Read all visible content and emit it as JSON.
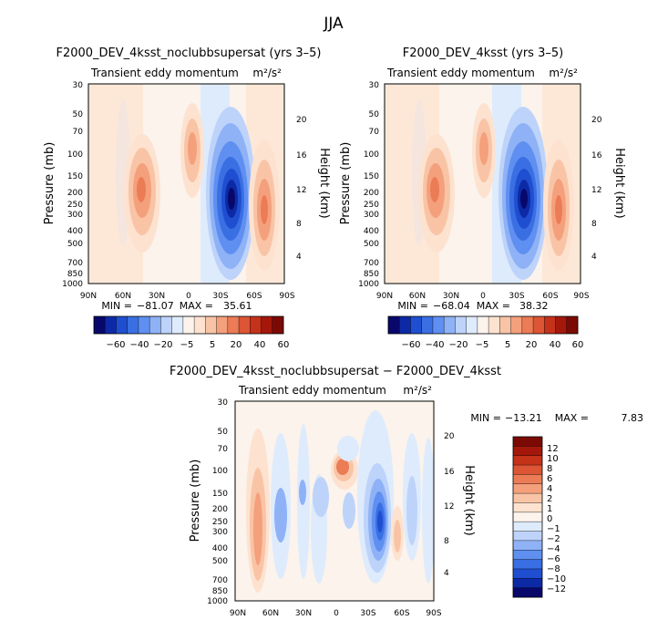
{
  "page": {
    "suptitle": "JJA"
  },
  "chart_data": [
    {
      "type": "heatmap",
      "title": "F2000_DEV_4ksst_noclubbsupersat (yrs 3–5)",
      "subtitle": "Transient eddy momentum",
      "units": "m²/s²",
      "xlabel": "",
      "ylabel": "Pressure (mb)",
      "y2label": "Height (km)",
      "x_ticks": [
        "90N",
        "60N",
        "30N",
        "0",
        "30S",
        "60S",
        "90S"
      ],
      "y_ticks": [
        "30",
        "50",
        "70",
        "100",
        "150",
        "200",
        "250",
        "300",
        "400",
        "500",
        "700",
        "850",
        "1000"
      ],
      "y2_ticks": [
        "20",
        "16",
        "12",
        "8",
        "4"
      ],
      "min_label": "MIN =",
      "min_value": "−81.07",
      "max_label": "MAX =",
      "max_value": "35.61",
      "colorbar_labels": [
        "−60",
        "−40",
        "−20",
        "−5",
        "5",
        "20",
        "40",
        "60"
      ]
    },
    {
      "type": "heatmap",
      "title": "F2000_DEV_4ksst (yrs 3–5)",
      "subtitle": "Transient eddy momentum",
      "units": "m²/s²",
      "xlabel": "",
      "ylabel": "Pressure (mb)",
      "y2label": "Height (km)",
      "x_ticks": [
        "90N",
        "60N",
        "30N",
        "0",
        "30S",
        "60S",
        "90S"
      ],
      "y_ticks": [
        "30",
        "50",
        "70",
        "100",
        "150",
        "200",
        "250",
        "300",
        "400",
        "500",
        "700",
        "850",
        "1000"
      ],
      "y2_ticks": [
        "20",
        "16",
        "12",
        "8",
        "4"
      ],
      "min_label": "MIN =",
      "min_value": "−68.04",
      "max_label": "MAX =",
      "max_value": "38.32",
      "colorbar_labels": [
        "−60",
        "−40",
        "−20",
        "−5",
        "5",
        "20",
        "40",
        "60"
      ]
    },
    {
      "type": "heatmap",
      "title": "F2000_DEV_4ksst_noclubbsupersat − F2000_DEV_4ksst",
      "subtitle": "Transient eddy momentum",
      "units": "m²/s²",
      "xlabel": "",
      "ylabel": "Pressure (mb)",
      "y2label": "Height (km)",
      "x_ticks": [
        "90N",
        "60N",
        "30N",
        "0",
        "30S",
        "60S",
        "90S"
      ],
      "y_ticks": [
        "30",
        "50",
        "70",
        "100",
        "150",
        "200",
        "250",
        "300",
        "400",
        "500",
        "700",
        "850",
        "1000"
      ],
      "y2_ticks": [
        "20",
        "16",
        "12",
        "8",
        "4"
      ],
      "min_label": "MIN =",
      "min_value": "−13.21",
      "max_label": "MAX =",
      "max_value": "7.83",
      "colorbar_labels": [
        "12",
        "10",
        "8",
        "6",
        "4",
        "2",
        "1",
        "0",
        "−1",
        "−2",
        "−4",
        "−6",
        "−8",
        "−10",
        "−12"
      ]
    }
  ],
  "colors": {
    "cool": [
      "#08086b",
      "#0d2aa6",
      "#1f4fd0",
      "#3a6fe3",
      "#5f8ff0",
      "#8fb2f6",
      "#bdd3fa",
      "#deebfd"
    ],
    "neutral": "#fbf3ec",
    "warm": [
      "#fde2d0",
      "#f9c4a6",
      "#f4a07c",
      "#eb7c56",
      "#dc5534",
      "#c4321a",
      "#a4180c",
      "#7c0a04"
    ]
  }
}
